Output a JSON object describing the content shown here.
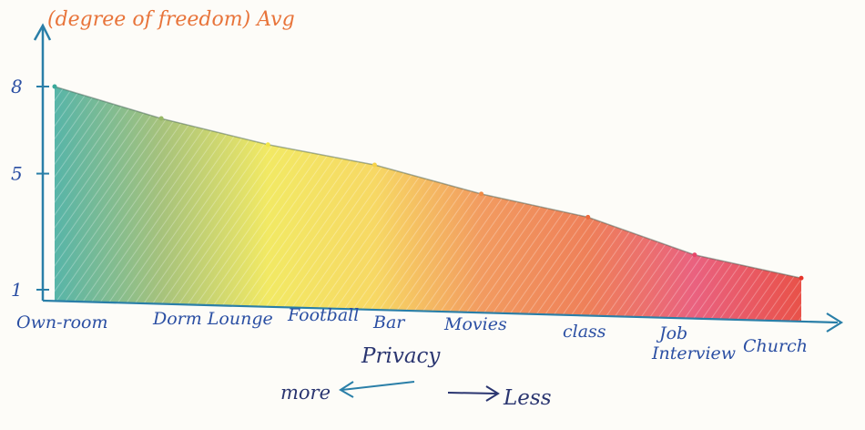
{
  "chart_data": {
    "type": "area",
    "title": "(degree of freedom) Avg",
    "xlabel": "Privacy",
    "ylabel": "",
    "categories": [
      "Own-room",
      "Dorm Lounge",
      "Football",
      "Bar",
      "Movies",
      "class",
      "Job Interview",
      "Church"
    ],
    "values": [
      8,
      6.9,
      6.0,
      5.3,
      4.3,
      3.5,
      2.2,
      1.4
    ],
    "yticks": [
      "8",
      "5",
      "1"
    ],
    "ylim": [
      0,
      9
    ],
    "grid": false,
    "direction": {
      "more_label": "more",
      "less_label": "Less"
    },
    "band_colors": [
      "#3aa89a",
      "#97b866",
      "#f0e64a",
      "#f6d24a",
      "#f08a45",
      "#ec6a3d",
      "#e6466a",
      "#e5342a"
    ],
    "title_color": "#e8743a",
    "axis_color": "#2a7fa8",
    "label_color": "#2b4fa3"
  }
}
